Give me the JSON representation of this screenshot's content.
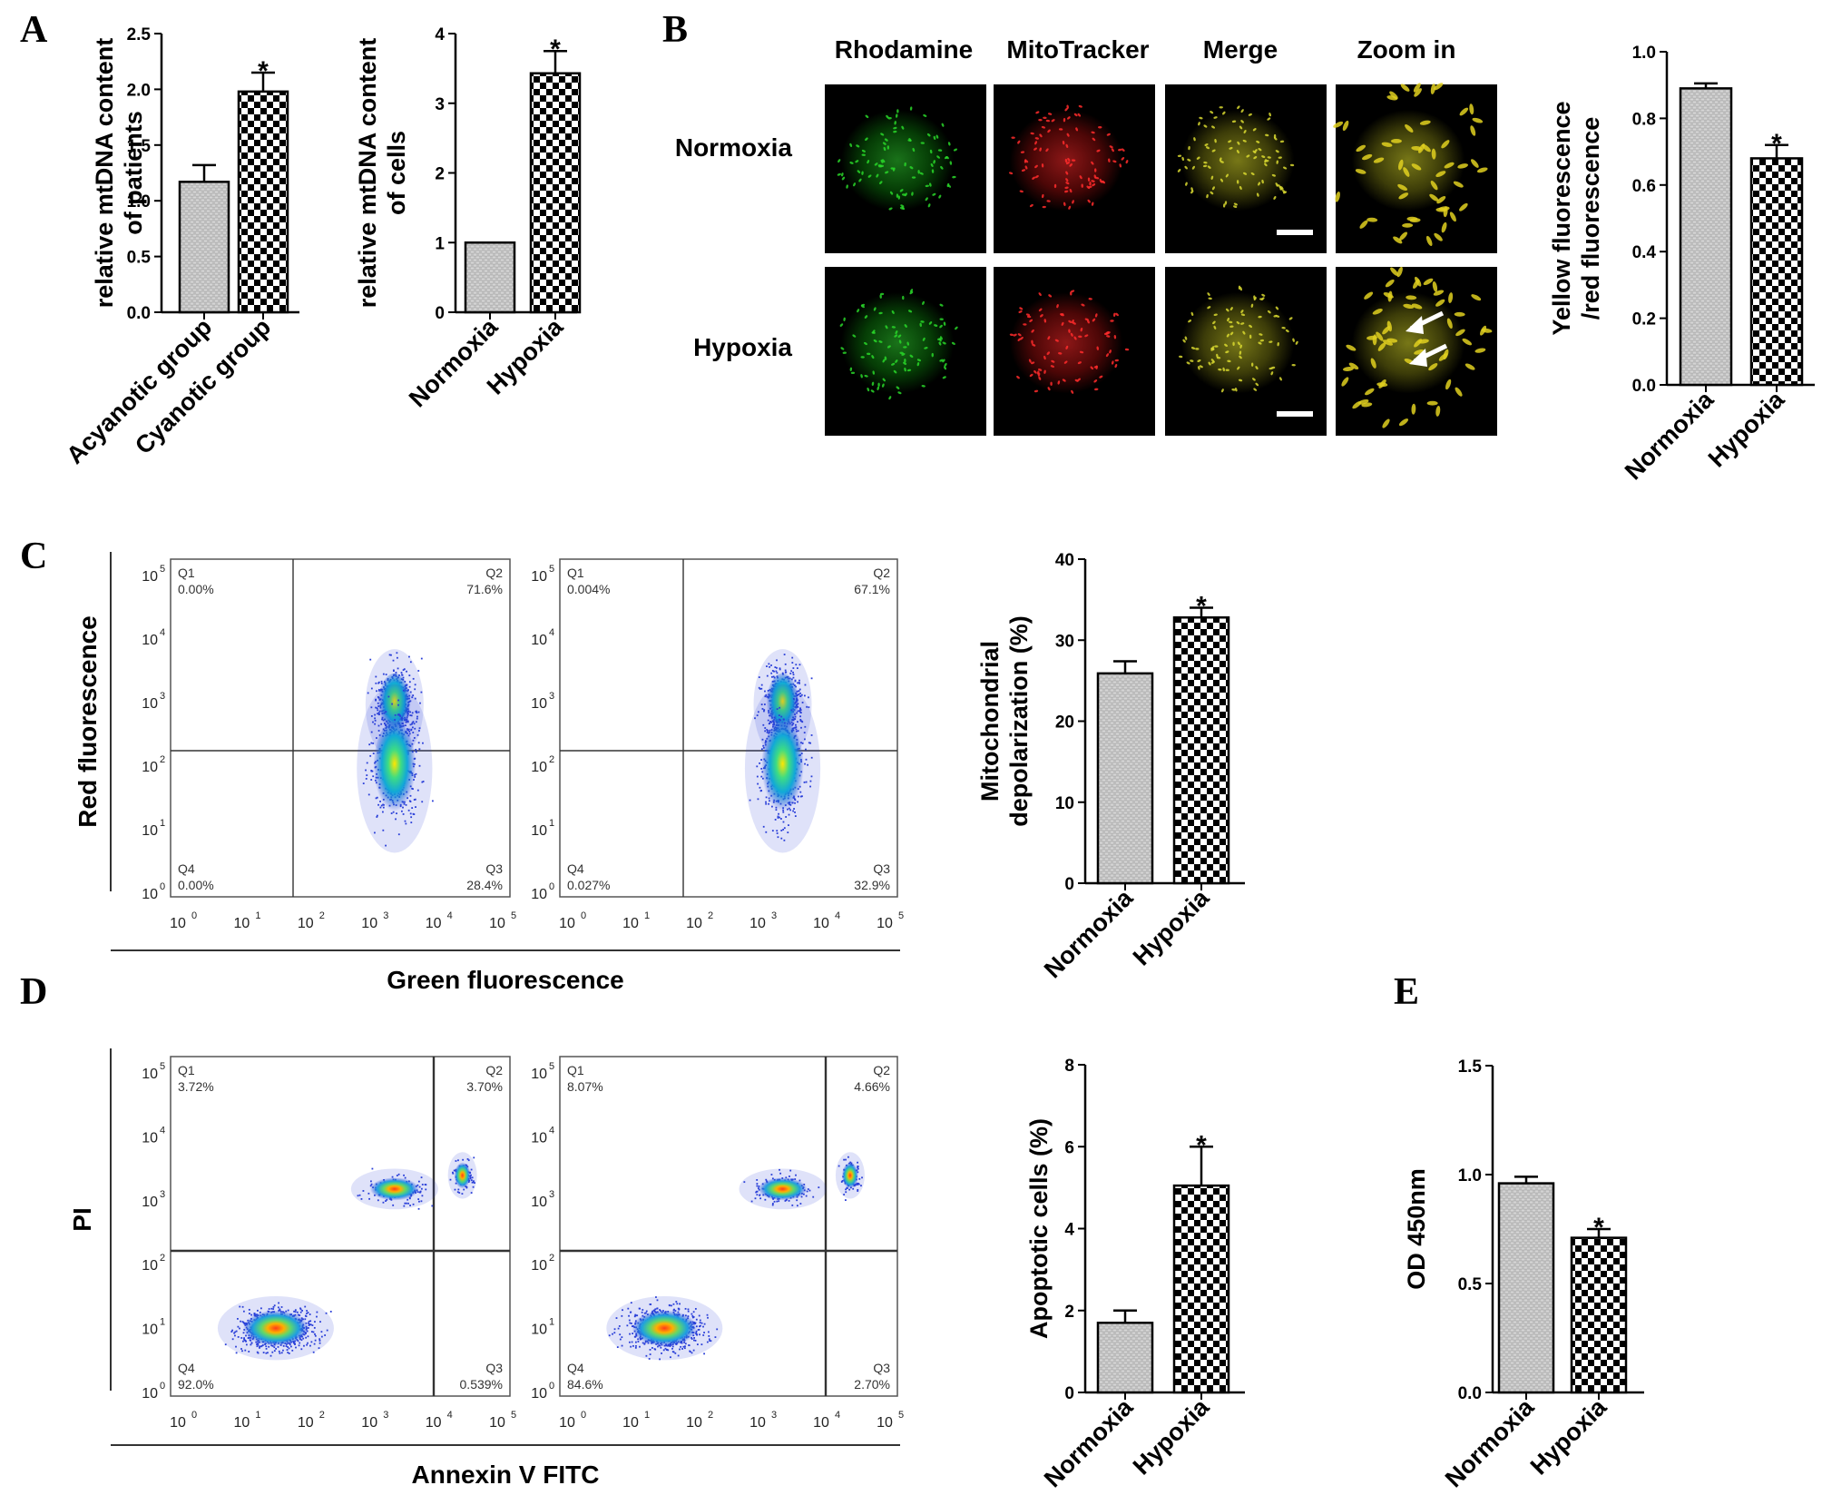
{
  "panel_labels": {
    "A": "A",
    "B": "B",
    "C": "C",
    "D": "D",
    "E": "E"
  },
  "colors": {
    "bar_stroke": "#000000",
    "light_bar": "#c9c9c9",
    "dark_bar": "#000000",
    "flow_points": "#2a3fd8"
  },
  "microscopy": {
    "columns": [
      "Rhodamine",
      "MitoTracker",
      "Merge",
      "Zoom in"
    ],
    "rows": [
      "Normoxia",
      "Hypoxia"
    ]
  },
  "flow_C": {
    "xlabel": "Green fluorescence",
    "ylabel": "Red fluorescence",
    "tick_base": "10",
    "exponents": [
      "0",
      "1",
      "2",
      "3",
      "4",
      "5"
    ],
    "plots": [
      {
        "quadrants": {
          "Q1": [
            "Q1",
            "0.00%"
          ],
          "Q2": [
            "Q2",
            "71.6%"
          ],
          "Q3": [
            "Q3",
            "28.4%"
          ],
          "Q4": [
            "Q4",
            "0.00%"
          ]
        }
      },
      {
        "quadrants": {
          "Q1": [
            "Q1",
            "0.004%"
          ],
          "Q2": [
            "Q2",
            "67.1%"
          ],
          "Q3": [
            "Q3",
            "32.9%"
          ],
          "Q4": [
            "Q4",
            "0.027%"
          ]
        }
      }
    ]
  },
  "flow_D": {
    "xlabel": "Annexin V FITC",
    "ylabel": "PI",
    "tick_base": "10",
    "exponents": [
      "0",
      "1",
      "2",
      "3",
      "4",
      "5"
    ],
    "plots": [
      {
        "quadrants": {
          "Q1": [
            "Q1",
            "3.72%"
          ],
          "Q2": [
            "Q2",
            "3.70%"
          ],
          "Q3": [
            "Q3",
            "0.539%"
          ],
          "Q4": [
            "Q4",
            "92.0%"
          ]
        }
      },
      {
        "quadrants": {
          "Q1": [
            "Q1",
            "8.07%"
          ],
          "Q2": [
            "Q2",
            "4.66%"
          ],
          "Q3": [
            "Q3",
            "2.70%"
          ],
          "Q4": [
            "Q4",
            "84.6%"
          ]
        }
      }
    ]
  },
  "chart_data": [
    {
      "id": "A1",
      "type": "bar",
      "categories": [
        "Acyanotic group",
        "Cyanotic group"
      ],
      "values": [
        1.17,
        1.98
      ],
      "errors": [
        0.15,
        0.17
      ],
      "significance": [
        "",
        "*"
      ],
      "ylabel": [
        "relative mtDNA content",
        "of patients"
      ],
      "ylim": [
        0,
        2.5
      ],
      "yticks": [
        "0.0",
        "0.5",
        "1.0",
        "1.5",
        "2.0",
        "2.5"
      ]
    },
    {
      "id": "A2",
      "type": "bar",
      "categories": [
        "Normoxia",
        "Hypoxia"
      ],
      "values": [
        1.0,
        3.43
      ],
      "errors": [
        0,
        0.32
      ],
      "significance": [
        "",
        "*"
      ],
      "ylabel": [
        "relative mtDNA content",
        "of cells"
      ],
      "ylim": [
        0,
        4
      ],
      "yticks": [
        "0",
        "1",
        "2",
        "3",
        "4"
      ]
    },
    {
      "id": "B",
      "type": "bar",
      "categories": [
        "Normoxia",
        "Hypoxia"
      ],
      "values": [
        0.89,
        0.68
      ],
      "errors": [
        0.015,
        0.04
      ],
      "significance": [
        "",
        "*"
      ],
      "ylabel": [
        "Yellow fluorescence",
        "/red fluorescence"
      ],
      "ylim": [
        0,
        1.0
      ],
      "yticks": [
        "0.0",
        "0.2",
        "0.4",
        "0.6",
        "0.8",
        "1.0"
      ]
    },
    {
      "id": "C",
      "type": "bar",
      "categories": [
        "Normoxia",
        "Hypoxia"
      ],
      "values": [
        25.9,
        32.8
      ],
      "errors": [
        1.5,
        1.2
      ],
      "significance": [
        "",
        "*"
      ],
      "ylabel": [
        "Mitochondrial",
        "depolarization (%)"
      ],
      "ylim": [
        0,
        40
      ],
      "yticks": [
        "0",
        "10",
        "20",
        "30",
        "40"
      ]
    },
    {
      "id": "D",
      "type": "bar",
      "categories": [
        "Normoxia",
        "Hypoxia"
      ],
      "values": [
        1.7,
        5.05
      ],
      "errors": [
        0.3,
        0.95
      ],
      "significance": [
        "",
        "*"
      ],
      "ylabel": [
        "Apoptotic  cells (%)"
      ],
      "ylim": [
        0,
        8
      ],
      "yticks": [
        "0",
        "2",
        "4",
        "6",
        "8"
      ]
    },
    {
      "id": "E",
      "type": "bar",
      "categories": [
        "Normoxia",
        "Hypoxia"
      ],
      "values": [
        0.96,
        0.71
      ],
      "errors": [
        0.03,
        0.04
      ],
      "significance": [
        "",
        "*"
      ],
      "ylabel": [
        "OD 450nm"
      ],
      "ylim": [
        0,
        1.5
      ],
      "yticks": [
        "0.0",
        "0.5",
        "1.0",
        "1.5"
      ]
    }
  ]
}
